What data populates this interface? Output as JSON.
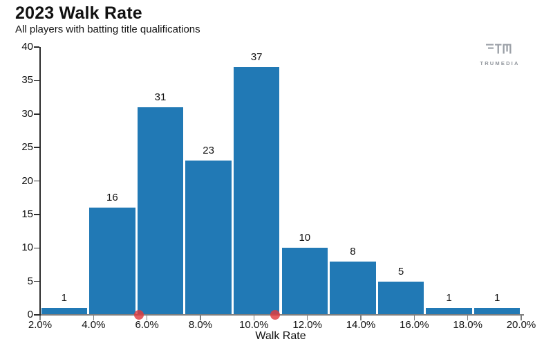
{
  "header": {
    "title": "2023 Walk Rate",
    "subtitle": "All players with batting title qualifications"
  },
  "watermark": {
    "label": "TRUMEDIA"
  },
  "chart_data": {
    "type": "bar",
    "title": "2023 Walk Rate",
    "subtitle": "All players with batting title qualifications",
    "xlabel": "Walk Rate",
    "ylabel": "",
    "xlim": [
      2.0,
      20.0
    ],
    "ylim": [
      0,
      40
    ],
    "grid": false,
    "legend": false,
    "x_ticks": [
      2,
      4,
      6,
      8,
      10,
      12,
      14,
      16,
      18,
      20
    ],
    "x_tick_labels": [
      "2.0%",
      "4.0%",
      "6.0%",
      "8.0%",
      "10.0%",
      "12.0%",
      "14.0%",
      "16.0%",
      "18.0%",
      "20.0%"
    ],
    "y_ticks": [
      0,
      5,
      10,
      15,
      20,
      25,
      30,
      35,
      40
    ],
    "y_tick_labels": [
      "0",
      "5",
      "10",
      "15",
      "20",
      "25",
      "30",
      "35",
      "40"
    ],
    "bin_width_pct": 1.8,
    "bins": [
      {
        "range_pct": [
          2.0,
          3.8
        ],
        "count": 1
      },
      {
        "range_pct": [
          3.8,
          5.6
        ],
        "count": 16
      },
      {
        "range_pct": [
          5.6,
          7.4
        ],
        "count": 31
      },
      {
        "range_pct": [
          7.4,
          9.2
        ],
        "count": 23
      },
      {
        "range_pct": [
          9.2,
          11.0
        ],
        "count": 37
      },
      {
        "range_pct": [
          11.0,
          12.8
        ],
        "count": 10
      },
      {
        "range_pct": [
          12.8,
          14.6
        ],
        "count": 8
      },
      {
        "range_pct": [
          14.6,
          16.4
        ],
        "count": 5
      },
      {
        "range_pct": [
          16.4,
          18.2
        ],
        "count": 1
      },
      {
        "range_pct": [
          18.2,
          20.0
        ],
        "count": 1
      }
    ],
    "axis_marker_points_pct": [
      5.7,
      10.8
    ],
    "colors": {
      "bar": "#2179b5",
      "marker": "#df3b3e",
      "x_axis": "#7f7f7f",
      "y_axis": "#2b2b2b",
      "text": "#111111",
      "watermark": "#8f949b"
    }
  }
}
